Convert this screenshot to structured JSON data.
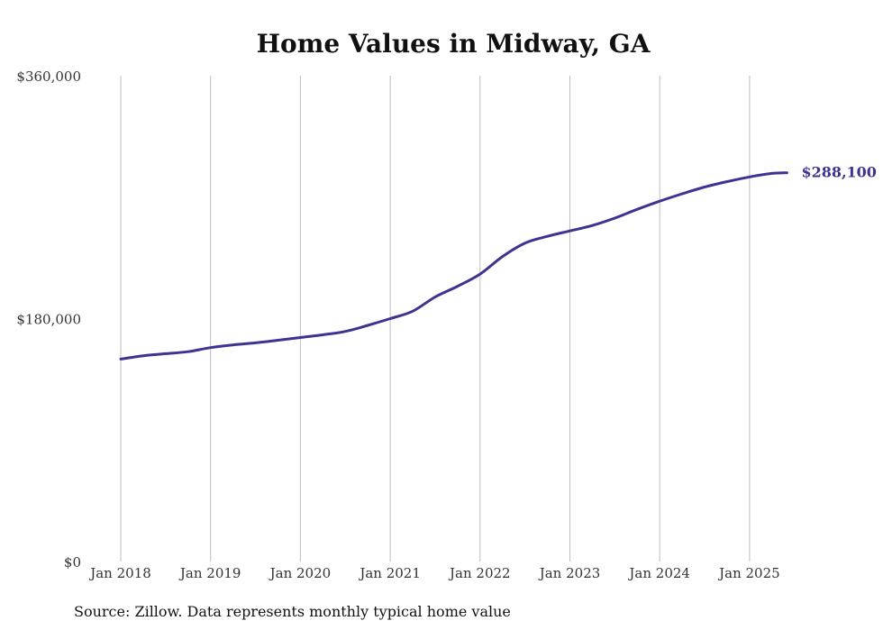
{
  "chart_data": {
    "type": "line",
    "title": "Home Values in Midway, GA",
    "xlabel": "",
    "ylabel": "",
    "ylim": [
      0,
      360000
    ],
    "y_ticks": [
      "$0",
      "$180,000",
      "$360,000"
    ],
    "x_ticks": [
      "Jan 2018",
      "Jan 2019",
      "Jan 2020",
      "Jan 2021",
      "Jan 2022",
      "Jan 2023",
      "Jan 2024",
      "Jan 2025"
    ],
    "grid": "vertical gridlines at each year",
    "legend": "none",
    "line_color": "#3d3391",
    "end_label": "$288,100",
    "series": [
      {
        "points": [
          [
            "2018-01",
            150000
          ],
          [
            "2018-04",
            152500
          ],
          [
            "2018-07",
            154000
          ],
          [
            "2018-10",
            155500
          ],
          [
            "2019-01",
            158500
          ],
          [
            "2019-04",
            160500
          ],
          [
            "2019-07",
            162000
          ],
          [
            "2019-10",
            164000
          ],
          [
            "2020-01",
            166000
          ],
          [
            "2020-04",
            168000
          ],
          [
            "2020-07",
            170500
          ],
          [
            "2020-10",
            175000
          ],
          [
            "2021-01",
            180000
          ],
          [
            "2021-04",
            185500
          ],
          [
            "2021-07",
            196000
          ],
          [
            "2021-10",
            204000
          ],
          [
            "2022-01",
            213000
          ],
          [
            "2022-04",
            226000
          ],
          [
            "2022-07",
            236000
          ],
          [
            "2022-10",
            241000
          ],
          [
            "2023-01",
            245000
          ],
          [
            "2023-04",
            249000
          ],
          [
            "2023-07",
            254500
          ],
          [
            "2023-10",
            261000
          ],
          [
            "2024-01",
            267000
          ],
          [
            "2024-04",
            272500
          ],
          [
            "2024-07",
            277500
          ],
          [
            "2024-10",
            281500
          ],
          [
            "2025-01",
            285000
          ],
          [
            "2025-04",
            287600
          ],
          [
            "2025-06",
            288100
          ]
        ]
      }
    ]
  },
  "source_note": "Source: Zillow. Data represents monthly typical home value"
}
